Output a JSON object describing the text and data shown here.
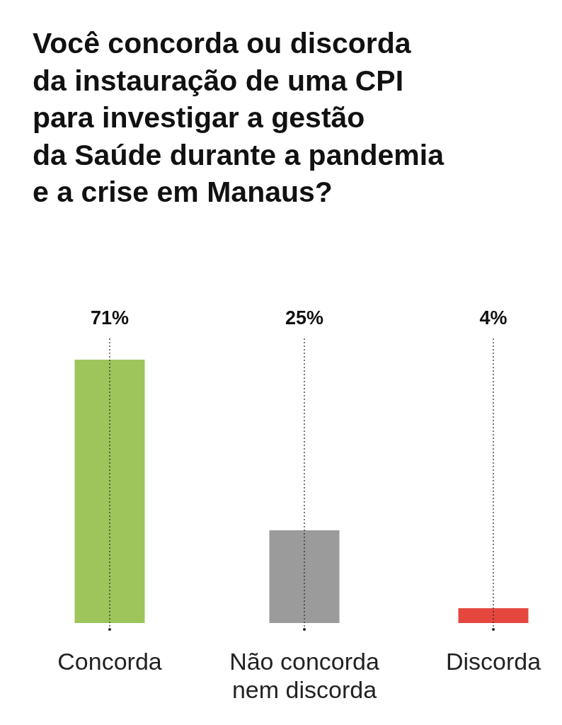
{
  "chart_data": {
    "type": "bar",
    "title": "Você concorda ou discorda\nda instauração de uma CPI\npara investigar a gestão\nda Saúde durante a pandemia\ne a crise em Manaus?",
    "categories": [
      "Concorda",
      "Não concorda nem discorda",
      "Discorda"
    ],
    "values": [
      71,
      25,
      4
    ],
    "colors": [
      "#9dc55c",
      "#9b9b9b",
      "#e5473f"
    ],
    "value_labels": [
      "71%",
      "25%",
      "4%"
    ]
  }
}
